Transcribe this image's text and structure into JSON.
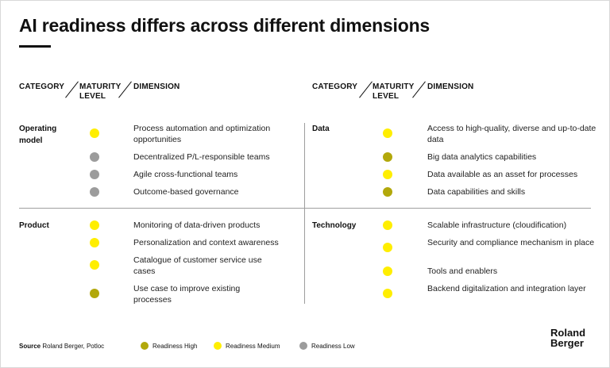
{
  "title": "AI readiness differs across different dimensions",
  "headers": {
    "category": "CATEGORY",
    "maturity_1": "MATURITY",
    "maturity_2": "LEVEL",
    "dimension": "DIMENSION"
  },
  "colors": {
    "high": "#b2a80b",
    "medium": "#ffee00",
    "low": "#9c9c9c"
  },
  "blocks": {
    "operating_model": {
      "category_1": "Operating",
      "category_2": "model",
      "items": [
        {
          "label": "Process automation and optimization opportunities",
          "level": "medium"
        },
        {
          "label": "Decentralized P/L-responsible teams",
          "level": "low"
        },
        {
          "label": "Agile cross-functional teams",
          "level": "low"
        },
        {
          "label": "Outcome-based governance",
          "level": "low"
        }
      ]
    },
    "data": {
      "category": "Data",
      "items": [
        {
          "label": "Access to high-quality, diverse and up-to-date data",
          "level": "medium"
        },
        {
          "label": "Big data analytics capabilities",
          "level": "high"
        },
        {
          "label": "Data available as an asset for processes",
          "level": "medium"
        },
        {
          "label": "Data capabilities and skills",
          "level": "high"
        }
      ]
    },
    "product": {
      "category": "Product",
      "items": [
        {
          "label": "Monitoring of data-driven products",
          "level": "medium"
        },
        {
          "label": "Personalization and context awareness",
          "level": "medium"
        },
        {
          "label": "Catalogue of customer service use cases",
          "level": "medium"
        },
        {
          "label": "Use case to improve existing processes",
          "level": "high"
        }
      ]
    },
    "technology": {
      "category": "Technology",
      "items": [
        {
          "label": "Scalable infrastructure (cloudification)",
          "level": "medium"
        },
        {
          "label": "Security and compliance mechanism in place",
          "level": "medium"
        },
        {
          "label": "Tools and enablers",
          "level": "medium"
        },
        {
          "label": "Backend digitalization and integration layer",
          "level": "medium"
        }
      ]
    }
  },
  "footer": {
    "source_label": "Source",
    "source_text": "Roland Berger, Potloc",
    "legend": [
      "Readiness High",
      "Readiness Medium",
      "Readiness Low"
    ]
  },
  "logo": {
    "line1": "Roland",
    "line2": "Berger"
  }
}
